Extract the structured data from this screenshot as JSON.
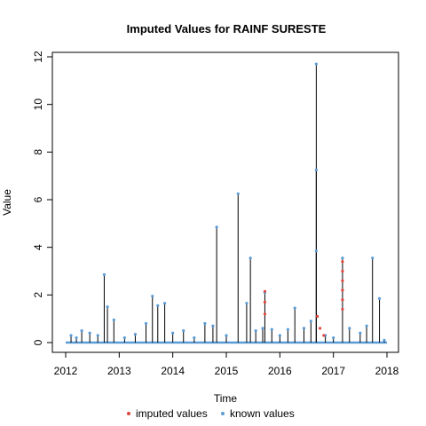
{
  "chart_data": {
    "type": "line",
    "title": "Imputed Values for  RAINF SURESTE",
    "xlabel": "Time",
    "ylabel": "Value",
    "xlim": [
      2012,
      2018
    ],
    "ylim": [
      0,
      12
    ],
    "x_ticks": [
      2012,
      2013,
      2014,
      2015,
      2016,
      2017,
      2018
    ],
    "y_ticks": [
      0,
      2,
      4,
      6,
      8,
      10,
      12
    ],
    "legend_position": "bottom",
    "grid": false,
    "colors": {
      "line": "#000000",
      "known": "#5b9bd5",
      "imputed": "#e0443e"
    },
    "series": [
      {
        "name": "known values",
        "points": [
          [
            2012.1,
            0.3
          ],
          [
            2012.2,
            0.2
          ],
          [
            2012.3,
            0.5
          ],
          [
            2012.45,
            0.4
          ],
          [
            2012.6,
            0.3
          ],
          [
            2012.72,
            2.85
          ],
          [
            2012.78,
            1.5
          ],
          [
            2012.9,
            0.95
          ],
          [
            2013.1,
            0.2
          ],
          [
            2013.3,
            0.35
          ],
          [
            2013.5,
            0.8
          ],
          [
            2013.62,
            1.95
          ],
          [
            2013.72,
            1.55
          ],
          [
            2013.85,
            1.65
          ],
          [
            2014.0,
            0.4
          ],
          [
            2014.2,
            0.5
          ],
          [
            2014.4,
            0.2
          ],
          [
            2014.6,
            0.8
          ],
          [
            2014.75,
            0.7
          ],
          [
            2014.82,
            4.85
          ],
          [
            2015.0,
            0.3
          ],
          [
            2015.22,
            6.25
          ],
          [
            2015.38,
            1.65
          ],
          [
            2015.45,
            3.55
          ],
          [
            2015.55,
            0.5
          ],
          [
            2015.68,
            0.6
          ],
          [
            2015.72,
            2.1
          ],
          [
            2015.85,
            0.55
          ],
          [
            2016.0,
            0.3
          ],
          [
            2016.15,
            0.55
          ],
          [
            2016.28,
            1.45
          ],
          [
            2016.45,
            0.6
          ],
          [
            2016.58,
            0.9
          ],
          [
            2016.68,
            11.7
          ],
          [
            2016.68,
            7.25
          ],
          [
            2016.68,
            3.85
          ],
          [
            2016.85,
            0.3
          ],
          [
            2017.0,
            0.2
          ],
          [
            2017.17,
            3.55
          ],
          [
            2017.3,
            0.6
          ],
          [
            2017.5,
            0.4
          ],
          [
            2017.62,
            0.7
          ],
          [
            2017.73,
            3.55
          ],
          [
            2017.86,
            1.85
          ],
          [
            2017.95,
            0.1
          ]
        ]
      },
      {
        "name": "imputed values",
        "points": [
          [
            2015.72,
            2.15
          ],
          [
            2015.72,
            1.7
          ],
          [
            2015.72,
            1.2
          ],
          [
            2016.7,
            1.1
          ],
          [
            2016.75,
            0.6
          ],
          [
            2016.82,
            0.3
          ],
          [
            2017.17,
            3.4
          ],
          [
            2017.17,
            3.0
          ],
          [
            2017.17,
            2.6
          ],
          [
            2017.17,
            2.2
          ],
          [
            2017.17,
            1.8
          ],
          [
            2017.17,
            1.4
          ]
        ]
      }
    ]
  }
}
